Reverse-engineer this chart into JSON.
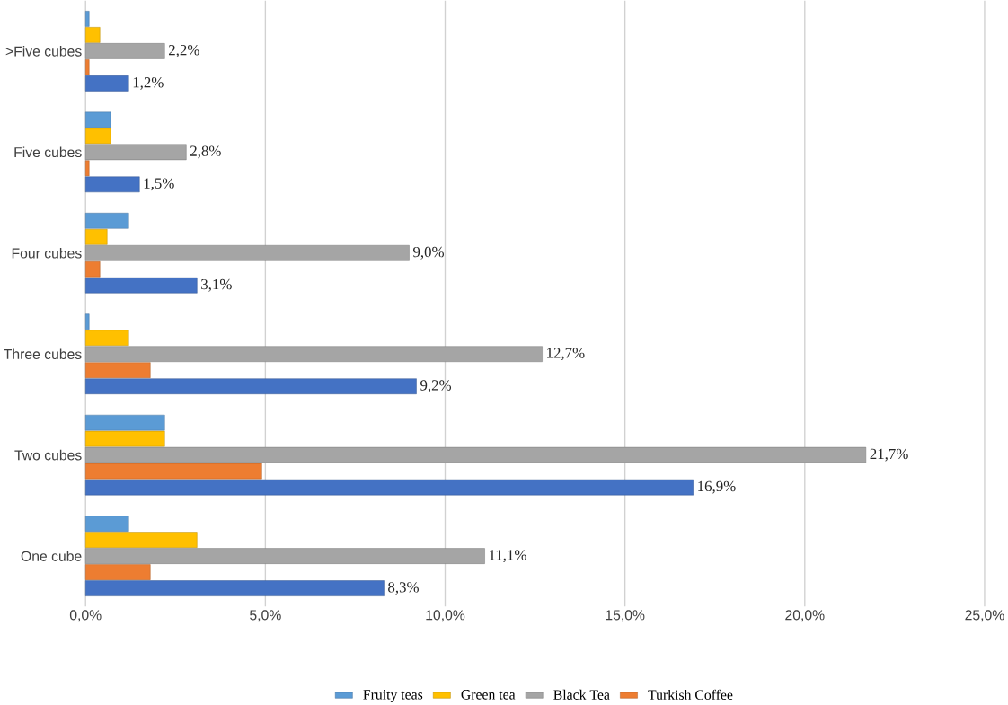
{
  "chart_data": {
    "type": "bar",
    "orientation": "horizontal",
    "categories": [
      ">Five cubes",
      "Five cubes",
      "Four cubes",
      "Three cubes",
      "Two cubes",
      "One cube"
    ],
    "series": [
      {
        "name": "Fruity teas",
        "color": "#5b9bd5",
        "values": [
          0.1,
          0.7,
          1.2,
          0.1,
          2.2,
          1.2
        ]
      },
      {
        "name": "Green tea",
        "color": "#ffc000",
        "values": [
          0.4,
          0.7,
          0.6,
          1.2,
          2.2,
          3.1
        ]
      },
      {
        "name": "Black Tea",
        "color": "#a5a5a5",
        "values": [
          2.2,
          2.8,
          9.0,
          12.7,
          21.7,
          11.1
        ],
        "value_labels": [
          "2,2%",
          "2,8%",
          "9,0%",
          "12,7%",
          "21,7%",
          "11,1%"
        ]
      },
      {
        "name": "Turkish Coffee",
        "color": "#ed7d31",
        "values": [
          0.1,
          0.1,
          0.4,
          1.8,
          4.9,
          1.8
        ]
      },
      {
        "color": "#4472c4",
        "values": [
          1.2,
          1.5,
          3.1,
          9.2,
          16.9,
          8.3
        ],
        "value_labels": [
          "1,2%",
          "1,5%",
          "3,1%",
          "9,2%",
          "16,9%",
          "8,3%"
        ]
      }
    ],
    "xlim": [
      0,
      25
    ],
    "xticks": [
      {
        "value": 0,
        "label": "0,0%"
      },
      {
        "value": 5,
        "label": "5,0%"
      },
      {
        "value": 10,
        "label": "10,0%"
      },
      {
        "value": 15,
        "label": "15,0%"
      },
      {
        "value": 20,
        "label": "20,0%"
      },
      {
        "value": 25,
        "label": "25,0%"
      }
    ],
    "grid": "x",
    "legend": "bottom"
  }
}
